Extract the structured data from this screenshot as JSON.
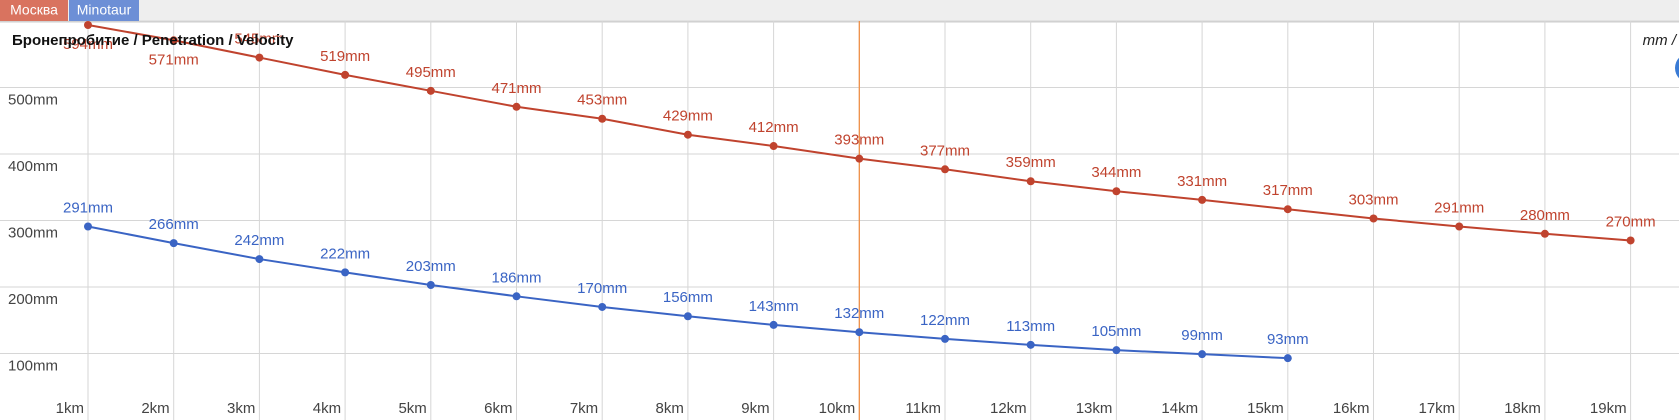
{
  "chart_data": {
    "type": "line",
    "title": "Бронепробитие / Penetration / Velocity",
    "axis_note": "mm /",
    "categories": [
      "1km",
      "2km",
      "3km",
      "4km",
      "5km",
      "6km",
      "7km",
      "8km",
      "9km",
      "10km",
      "11km",
      "12km",
      "13km",
      "14km",
      "15km",
      "16km",
      "17km",
      "18km",
      "19km"
    ],
    "series": [
      {
        "name": "Москва",
        "color": "#c0432e",
        "values": [
          594,
          571,
          545,
          519,
          495,
          471,
          453,
          429,
          412,
          393,
          377,
          359,
          344,
          331,
          317,
          303,
          291,
          280,
          270
        ],
        "value_labels": [
          "594mm",
          "571mm",
          "545mm",
          "519mm",
          "495mm",
          "471mm",
          "453mm",
          "429mm",
          "412mm",
          "393mm",
          "377mm",
          "359mm",
          "344mm",
          "331mm",
          "317mm",
          "303mm",
          "291mm",
          "280mm",
          "270mm"
        ]
      },
      {
        "name": "Minotaur",
        "color": "#3a64c4",
        "values": [
          291,
          266,
          242,
          222,
          203,
          186,
          170,
          156,
          143,
          132,
          122,
          113,
          105,
          99,
          93,
          null,
          null,
          null,
          null
        ],
        "value_labels": [
          "291mm",
          "266mm",
          "242mm",
          "222mm",
          "203mm",
          "186mm",
          "170mm",
          "156mm",
          "143mm",
          "132mm",
          "122mm",
          "113mm",
          "105mm",
          "99mm",
          "93mm",
          null,
          null,
          null,
          null
        ]
      }
    ],
    "ylim": [
      0,
      600
    ],
    "yticks": [
      {
        "value": 100,
        "label": "100mm"
      },
      {
        "value": 200,
        "label": "200mm"
      },
      {
        "value": 300,
        "label": "300mm"
      },
      {
        "value": 400,
        "label": "400mm"
      },
      {
        "value": 500,
        "label": "500mm"
      }
    ],
    "grid": true
  }
}
